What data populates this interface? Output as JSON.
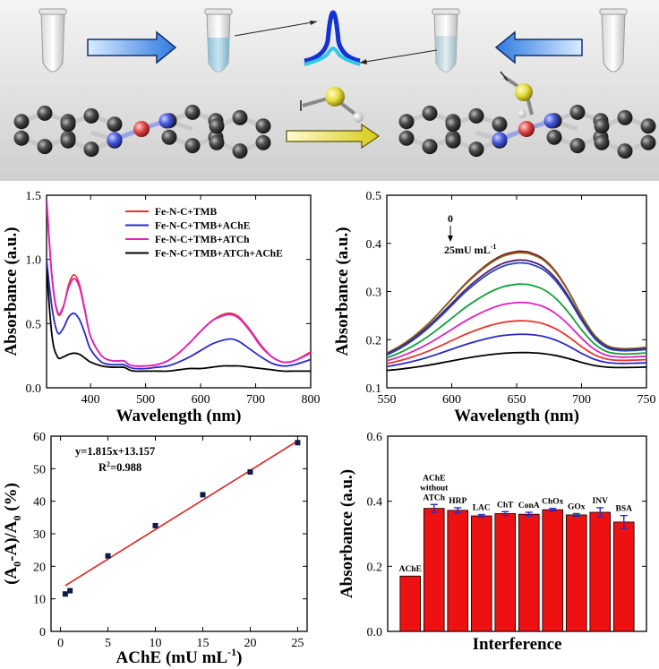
{
  "scheme": {
    "description_labels": []
  },
  "panels": [
    {
      "id": "a",
      "type": "line",
      "xlabel": "Wavelength (nm)",
      "ylabel": "Absorbance (a.u.)",
      "xlim": [
        320,
        800
      ],
      "ylim": [
        0,
        1.5
      ],
      "xticks": [
        400,
        500,
        600,
        700,
        800
      ],
      "yticks": [
        0.0,
        0.5,
        1.0,
        1.5
      ],
      "xtick_labels": [
        "400",
        "500",
        "600",
        "700",
        "800"
      ],
      "ytick_labels": [
        "0.0",
        "0.5",
        "1.0",
        "1.5"
      ],
      "legend_position": "top-right",
      "series": [
        {
          "name": "Fe-N-C+TMB",
          "color": "#e8352f",
          "x": [
            320,
            330,
            340,
            350,
            360,
            370,
            380,
            390,
            400,
            420,
            440,
            460,
            470,
            480,
            500,
            520,
            540,
            560,
            580,
            600,
            620,
            640,
            655,
            670,
            690,
            710,
            730,
            750,
            770,
            800
          ],
          "y": [
            1.45,
            0.85,
            0.58,
            0.62,
            0.8,
            0.88,
            0.8,
            0.6,
            0.4,
            0.25,
            0.21,
            0.21,
            0.18,
            0.17,
            0.17,
            0.18,
            0.21,
            0.27,
            0.35,
            0.44,
            0.52,
            0.57,
            0.58,
            0.55,
            0.45,
            0.33,
            0.24,
            0.2,
            0.21,
            0.28
          ]
        },
        {
          "name": "Fe-N-C+TMB+AChE",
          "color": "#2a2ac8",
          "x": [
            320,
            330,
            340,
            350,
            360,
            370,
            380,
            390,
            400,
            420,
            440,
            460,
            470,
            480,
            500,
            520,
            540,
            560,
            580,
            600,
            620,
            640,
            655,
            670,
            690,
            710,
            730,
            750,
            770,
            800
          ],
          "y": [
            1.0,
            0.62,
            0.43,
            0.46,
            0.55,
            0.58,
            0.53,
            0.42,
            0.3,
            0.2,
            0.18,
            0.18,
            0.16,
            0.15,
            0.15,
            0.16,
            0.17,
            0.2,
            0.24,
            0.29,
            0.34,
            0.37,
            0.38,
            0.36,
            0.3,
            0.24,
            0.19,
            0.17,
            0.18,
            0.22
          ]
        },
        {
          "name": "Fe-N-C+TMB+ATCh",
          "color": "#e021c0",
          "x": [
            320,
            330,
            340,
            350,
            360,
            370,
            380,
            390,
            400,
            420,
            440,
            460,
            470,
            480,
            500,
            520,
            540,
            560,
            580,
            600,
            620,
            640,
            655,
            670,
            690,
            710,
            730,
            750,
            770,
            800
          ],
          "y": [
            1.48,
            0.86,
            0.59,
            0.63,
            0.78,
            0.85,
            0.78,
            0.59,
            0.4,
            0.25,
            0.21,
            0.21,
            0.18,
            0.17,
            0.17,
            0.18,
            0.21,
            0.27,
            0.35,
            0.44,
            0.52,
            0.56,
            0.57,
            0.54,
            0.44,
            0.32,
            0.24,
            0.2,
            0.21,
            0.27
          ]
        },
        {
          "name": "Fe-N-C+TMB+ATCh+AChE",
          "color": "#000000",
          "x": [
            320,
            330,
            340,
            350,
            360,
            370,
            380,
            390,
            400,
            420,
            440,
            460,
            470,
            480,
            500,
            520,
            540,
            560,
            580,
            600,
            620,
            640,
            655,
            670,
            690,
            710,
            730,
            750,
            770,
            800
          ],
          "y": [
            0.92,
            0.4,
            0.24,
            0.24,
            0.26,
            0.27,
            0.26,
            0.23,
            0.2,
            0.17,
            0.16,
            0.16,
            0.14,
            0.13,
            0.13,
            0.13,
            0.13,
            0.14,
            0.15,
            0.15,
            0.16,
            0.17,
            0.17,
            0.17,
            0.16,
            0.15,
            0.14,
            0.13,
            0.13,
            0.13
          ]
        }
      ]
    },
    {
      "id": "b",
      "type": "line",
      "xlabel": "Wavelength (nm)",
      "ylabel": "Absorbance (a.u.)",
      "xlim": [
        550,
        750
      ],
      "ylim": [
        0.1,
        0.5
      ],
      "xticks": [
        550,
        600,
        650,
        700,
        750
      ],
      "yticks": [
        0.1,
        0.2,
        0.3,
        0.4,
        0.5
      ],
      "xtick_labels": [
        "550",
        "600",
        "650",
        "700",
        "750"
      ],
      "ytick_labels": [
        "0.1",
        "0.2",
        "0.3",
        "0.4",
        "0.5"
      ],
      "annotation_top": "0",
      "annotation_bottom": "25mU mL",
      "annotation_superscript": "-1",
      "curve_shape": {
        "x": [
          550,
          560,
          570,
          580,
          590,
          600,
          610,
          620,
          630,
          640,
          650,
          655,
          660,
          670,
          680,
          690,
          700,
          710,
          720,
          730,
          740,
          750
        ],
        "f": [
          0.0,
          0.07,
          0.16,
          0.27,
          0.4,
          0.54,
          0.68,
          0.8,
          0.9,
          0.97,
          1.0,
          1.0,
          0.99,
          0.93,
          0.8,
          0.6,
          0.36,
          0.16,
          0.05,
          0.02,
          0.02,
          0.03
        ]
      },
      "series": [
        {
          "name": "0",
          "color": "#7a0f1e",
          "base": 0.17,
          "peak": 0.38
        },
        {
          "name": "",
          "color": "#8a6d24",
          "base": 0.172,
          "peak": 0.377
        },
        {
          "name": "",
          "color": "#4b1c6e",
          "base": 0.17,
          "peak": 0.362
        },
        {
          "name": "",
          "color": "#2846b4",
          "base": 0.168,
          "peak": 0.356
        },
        {
          "name": "",
          "color": "#12a03a",
          "base": 0.162,
          "peak": 0.312
        },
        {
          "name": "",
          "color": "#e021c0",
          "base": 0.156,
          "peak": 0.274
        },
        {
          "name": "",
          "color": "#e8352f",
          "base": 0.15,
          "peak": 0.236
        },
        {
          "name": "",
          "color": "#2a2ac8",
          "base": 0.144,
          "peak": 0.208
        },
        {
          "name": "25mU mL-1",
          "color": "#000000",
          "base": 0.136,
          "peak": 0.17
        }
      ]
    },
    {
      "id": "c",
      "type": "scatter",
      "xlabel": "AChE (mU mL",
      "xlabel_sup": "-1",
      "xlabel_end": ")",
      "ylabel": "(A0-A)/A0 (%)",
      "xlim": [
        -1,
        26
      ],
      "ylim": [
        0,
        60
      ],
      "xticks": [
        0,
        5,
        10,
        15,
        20,
        25
      ],
      "yticks": [
        0,
        10,
        20,
        30,
        40,
        50,
        60
      ],
      "xtick_labels": [
        "0",
        "5",
        "10",
        "15",
        "20",
        "25"
      ],
      "ytick_labels": [
        "0",
        "10",
        "20",
        "30",
        "40",
        "50",
        "60"
      ],
      "equation": "y=1.815x+13.157",
      "r2_label": "R",
      "r2_sup": "2",
      "r2_value": "=0.988",
      "fit": {
        "slope": 1.815,
        "intercept": 13.157,
        "x_range": [
          0.5,
          25
        ],
        "color": "#e02020"
      },
      "points": {
        "x": [
          0.5,
          1,
          5,
          10,
          15,
          20,
          25
        ],
        "y": [
          11.5,
          12.5,
          23.2,
          32.5,
          42,
          49,
          58
        ]
      }
    },
    {
      "id": "d",
      "type": "bar",
      "xlabel": "Interference",
      "ylabel": "Absorbance (a.u.)",
      "ylim": [
        0.0,
        0.6
      ],
      "yticks": [
        0.0,
        0.2,
        0.4,
        0.6
      ],
      "ytick_labels": [
        "0.0",
        "0.2",
        "0.4",
        "0.6"
      ],
      "bar_color": "#ee1111",
      "categories": [
        {
          "label": "AChE",
          "lines": [
            "AChE"
          ]
        },
        {
          "label": "AChE without ATCh",
          "lines": [
            "AChE",
            "without",
            "ATCh"
          ]
        },
        {
          "label": "HRP",
          "lines": [
            "HRP"
          ]
        },
        {
          "label": "LAC",
          "lines": [
            "LAC"
          ]
        },
        {
          "label": "ChT",
          "lines": [
            "ChT"
          ]
        },
        {
          "label": "ConA",
          "lines": [
            "ConA"
          ]
        },
        {
          "label": "ChOx",
          "lines": [
            "ChOx"
          ]
        },
        {
          "label": "GOx",
          "lines": [
            "GOx"
          ]
        },
        {
          "label": "INV",
          "lines": [
            "INV"
          ]
        },
        {
          "label": "BSA",
          "lines": [
            "BSA"
          ]
        }
      ],
      "values": [
        0.17,
        0.378,
        0.372,
        0.355,
        0.362,
        0.36,
        0.374,
        0.358,
        0.366,
        0.336
      ],
      "errors": [
        0.0,
        0.012,
        0.008,
        0.004,
        0.006,
        0.006,
        0.004,
        0.004,
        0.014,
        0.02
      ]
    }
  ]
}
